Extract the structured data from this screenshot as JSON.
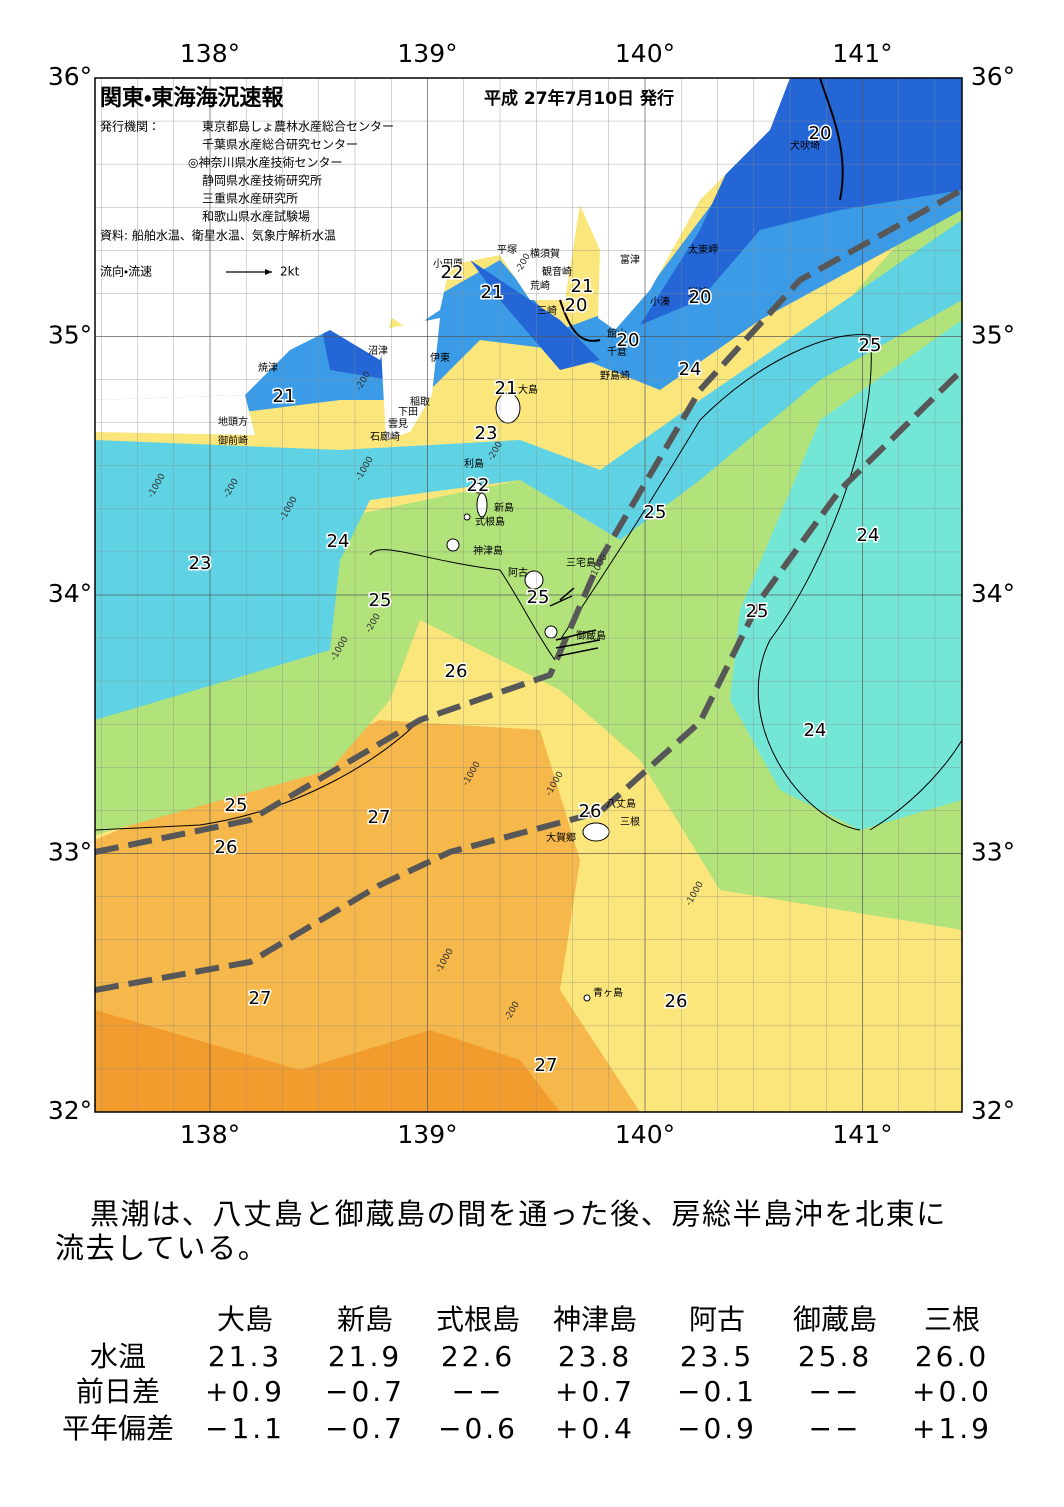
{
  "header": {
    "title": "関東・東海海況速報",
    "date": "平成 27年7月10日 発行",
    "publisher_label": "発行機関：",
    "publishers": [
      "東京都島しょ農林水産総合センター",
      "千葉県水産総合研究センター",
      "◎神奈川県水産技術センター",
      "静岡県水産技術研究所",
      "三重県水産研究所",
      "和歌山県水産試験場"
    ],
    "sources": "資料: 船舶水温、衛星水温、気象庁解析水温",
    "current_legend": "流向・流速",
    "current_scale": "2kt"
  },
  "map": {
    "lon_labels": [
      "138°",
      "139°",
      "140°",
      "141°"
    ],
    "lat_labels": [
      "36°",
      "35°",
      "34°",
      "33°",
      "32°"
    ],
    "places": [
      "犬吠埼",
      "太東岬",
      "勝浦",
      "小湊",
      "富津",
      "館山",
      "千倉",
      "野島崎",
      "観音崎",
      "横須賀",
      "荒崎",
      "三崎",
      "平塚",
      "小田原",
      "沼津",
      "伊東",
      "焼津",
      "稲取",
      "下田",
      "雲見",
      "石廊崎",
      "地頭方",
      "御前崎",
      "大島",
      "利島",
      "新島",
      "式根島",
      "神津島",
      "三宅島",
      "阿古",
      "御蔵島",
      "大賀郷",
      "八丈島",
      "三根",
      "青ヶ島"
    ],
    "contour_labels": [
      "20",
      "20",
      "21",
      "20",
      "20",
      "22",
      "21",
      "21",
      "23",
      "22",
      "24",
      "25",
      "25",
      "24",
      "21",
      "23",
      "24",
      "25",
      "25",
      "25",
      "26",
      "24",
      "25",
      "27",
      "26",
      "26",
      "27",
      "26",
      "27"
    ],
    "depth_labels": [
      "-200",
      "-200",
      "-1000",
      "-200",
      "-1000",
      "-200",
      "-1000",
      "-1000",
      "-200",
      "-1000",
      "-1000",
      "-1000",
      "-1000",
      "-1000",
      "-200"
    ]
  },
  "description": [
    "黒潮は、八丈島と御蔵島の間を通った後、房総半島沖を北東に",
    "流去している。"
  ],
  "table": {
    "columns": [
      "大島",
      "新島",
      "式根島",
      "神津島",
      "阿古",
      "御蔵島",
      "三根"
    ],
    "rows": [
      {
        "label": "水温",
        "cells": [
          "21.3",
          "21.9",
          "22.6",
          "23.8",
          "23.5",
          "25.8",
          "26.0"
        ]
      },
      {
        "label": "前日差",
        "cells": [
          "+0.9",
          "−0.7",
          "−−",
          "+0.7",
          "−0.1",
          "−−",
          "+0.0"
        ]
      },
      {
        "label": "平年偏差",
        "cells": [
          "−1.1",
          "−0.7",
          "−0.6",
          "+0.4",
          "−0.9",
          "−−",
          "+1.9"
        ]
      }
    ]
  }
}
